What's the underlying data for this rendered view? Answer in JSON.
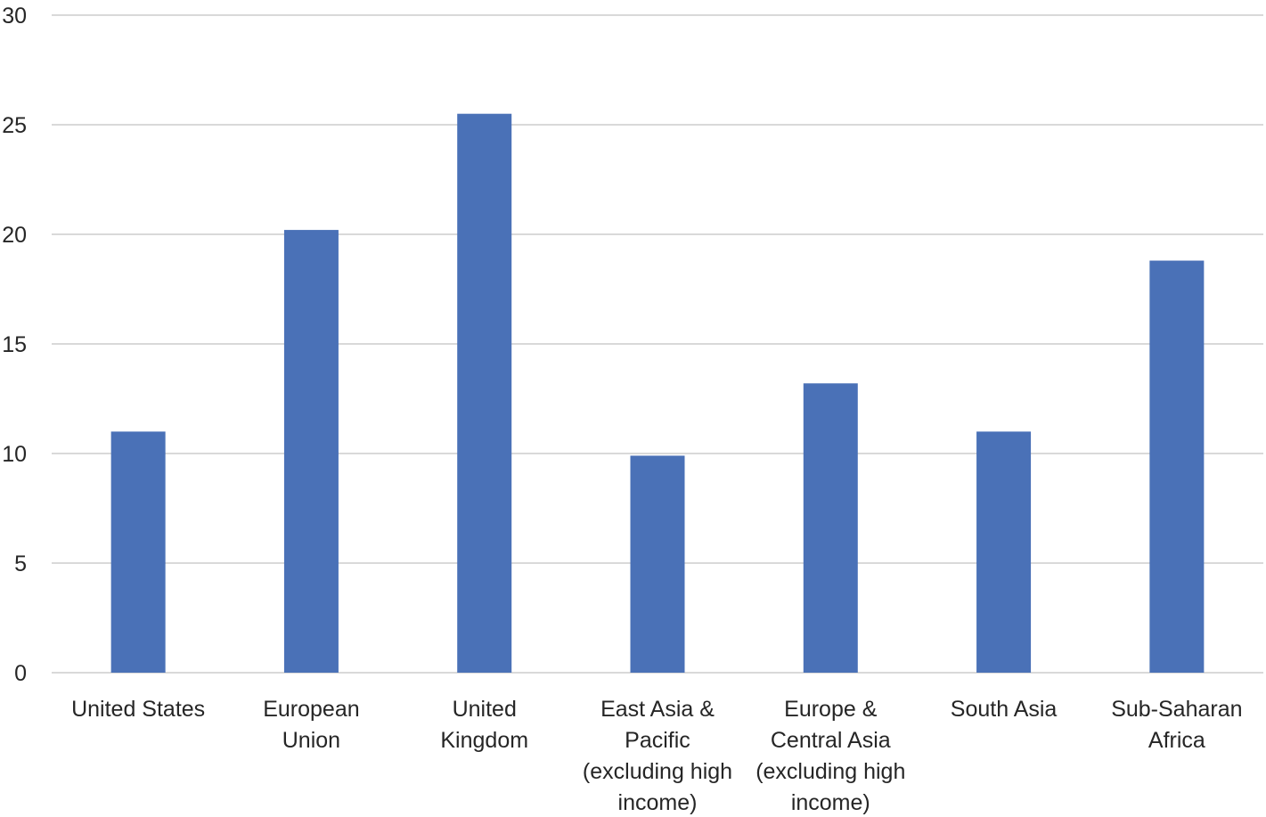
{
  "chart_data": {
    "type": "bar",
    "categories": [
      [
        "United States"
      ],
      [
        "European",
        "Union"
      ],
      [
        "United",
        "Kingdom"
      ],
      [
        "East Asia &",
        "Pacific",
        "(excluding high",
        "income)"
      ],
      [
        "Europe &",
        "Central Asia",
        "(excluding high",
        "income)"
      ],
      [
        "South Asia"
      ],
      [
        "Sub-Saharan",
        "Africa"
      ]
    ],
    "values": [
      11.0,
      20.2,
      25.5,
      9.9,
      13.2,
      11.0,
      18.8
    ],
    "title": "",
    "xlabel": "",
    "ylabel": "",
    "ylim": [
      0,
      30
    ],
    "yticks": [
      0,
      5,
      10,
      15,
      20,
      25,
      30
    ],
    "grid": true,
    "legend": "none",
    "colors": {
      "bar": "#4a71b7",
      "grid": "#d9d9d9",
      "text": "#262626"
    }
  }
}
